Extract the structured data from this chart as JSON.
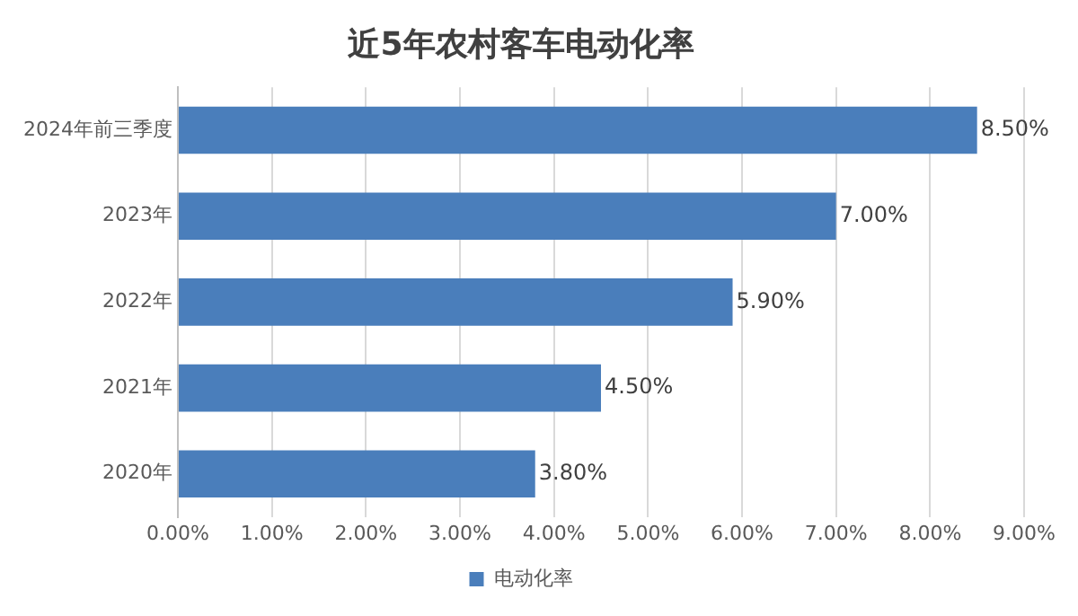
{
  "chart_data": {
    "type": "bar",
    "orientation": "horizontal",
    "title": "近5年农村客车电动化率",
    "categories": [
      "2024年前三季度",
      "2023年",
      "2022年",
      "2021年",
      "2020年"
    ],
    "series": [
      {
        "name": "电动化率",
        "color": "#4a7ebb",
        "values": [
          8.5,
          7.0,
          5.9,
          4.5,
          3.8
        ],
        "value_labels": [
          "8.50%",
          "7.00%",
          "5.90%",
          "4.50%",
          "3.80%"
        ]
      }
    ],
    "xlim": [
      0,
      9
    ],
    "xticks": [
      {
        "value": 0,
        "label": "0.00%"
      },
      {
        "value": 1,
        "label": "1.00%"
      },
      {
        "value": 2,
        "label": "2.00%"
      },
      {
        "value": 3,
        "label": "3.00%"
      },
      {
        "value": 4,
        "label": "4.00%"
      },
      {
        "value": 5,
        "label": "5.00%"
      },
      {
        "value": 6,
        "label": "6.00%"
      },
      {
        "value": 7,
        "label": "7.00%"
      },
      {
        "value": 8,
        "label": "8.00%"
      },
      {
        "value": 9,
        "label": "9.00%"
      }
    ],
    "grid": "x",
    "legend": "bottom"
  }
}
